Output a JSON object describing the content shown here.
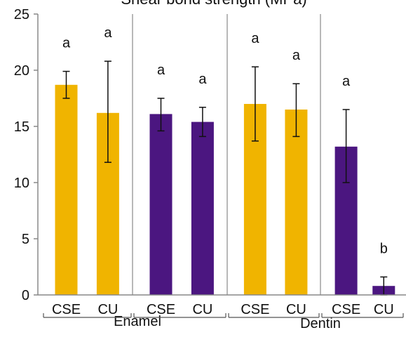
{
  "chart_data": {
    "type": "bar",
    "title": "Shear bond strength (MPa)",
    "ylim": [
      0,
      25
    ],
    "yticks": [
      0,
      5,
      10,
      15,
      20,
      25
    ],
    "grid": false,
    "colors": {
      "yellow": "#f0b400",
      "purple": "#4b1680"
    },
    "groups": [
      "Enamel",
      "Dentin"
    ],
    "bars": [
      {
        "label": "CSE",
        "value": 18.7,
        "err_low": 17.5,
        "err_high": 19.9,
        "color": "yellow",
        "letter": "a"
      },
      {
        "label": "CU",
        "value": 16.2,
        "err_low": 11.8,
        "err_high": 20.8,
        "color": "yellow",
        "letter": "a"
      },
      {
        "label": "CSE",
        "value": 16.1,
        "err_low": 14.6,
        "err_high": 17.5,
        "color": "purple",
        "letter": "a"
      },
      {
        "label": "CU",
        "value": 15.4,
        "err_low": 14.1,
        "err_high": 16.7,
        "color": "purple",
        "letter": "a"
      },
      {
        "label": "CSE",
        "value": 17.0,
        "err_low": 13.7,
        "err_high": 20.3,
        "color": "yellow",
        "letter": "a"
      },
      {
        "label": "CU",
        "value": 16.5,
        "err_low": 14.1,
        "err_high": 18.8,
        "color": "yellow",
        "letter": "a"
      },
      {
        "label": "CSE",
        "value": 13.2,
        "err_low": 10.0,
        "err_high": 16.5,
        "color": "purple",
        "letter": "a"
      },
      {
        "label": "CU",
        "value": 0.8,
        "err_low": 0.0,
        "err_high": 1.6,
        "color": "purple",
        "letter": "b"
      }
    ]
  }
}
